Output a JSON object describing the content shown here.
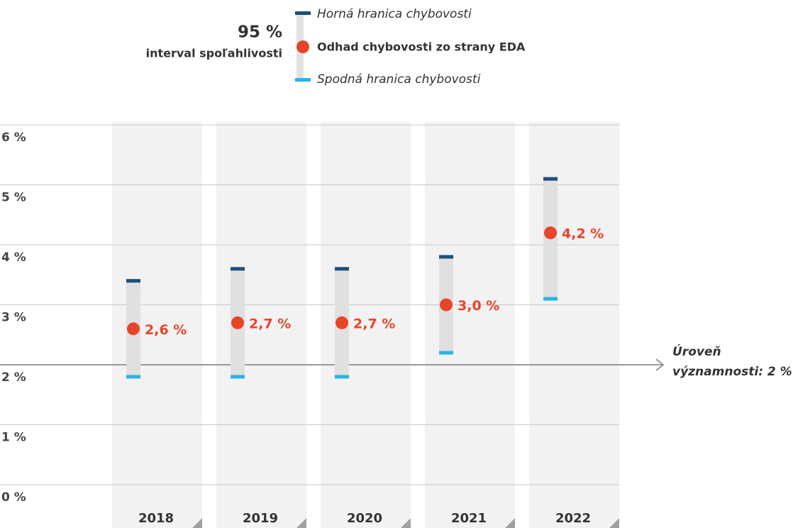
{
  "chart_data": {
    "type": "errorbar",
    "legend_title": [
      "95 %",
      "interval spoľahlivosti"
    ],
    "categories": [
      "2018",
      "2019",
      "2020",
      "2021",
      "2022"
    ],
    "series": [
      {
        "name": "Horná hranica chybovosti",
        "color": "#1d4f7c",
        "values": [
          3.4,
          3.6,
          3.6,
          3.8,
          5.1
        ]
      },
      {
        "name": "Odhad chybovosti zo strany EDA",
        "color": "#e8442a",
        "values": [
          2.6,
          2.7,
          2.7,
          3.0,
          4.2
        ],
        "value_labels": [
          "2,6 %",
          "2,7 %",
          "2,7 %",
          "3,0 %",
          "4,2 %"
        ]
      },
      {
        "name": "Spodná hranica chybovosti",
        "color": "#29b4e6",
        "values": [
          1.8,
          1.8,
          1.8,
          2.2,
          3.1
        ]
      }
    ],
    "ylim": [
      0,
      6
    ],
    "yticks": [
      {
        "value": 0,
        "label": "0 %"
      },
      {
        "value": 1,
        "label": "1 %"
      },
      {
        "value": 2,
        "label": "2 %"
      },
      {
        "value": 3,
        "label": "3 %"
      },
      {
        "value": 4,
        "label": "4 %"
      },
      {
        "value": 5,
        "label": "5 %"
      },
      {
        "value": 6,
        "label": "6 %"
      }
    ],
    "grid": true,
    "threshold": {
      "value": 2,
      "label": [
        "Úroveň",
        "významnosti: 2 %"
      ]
    }
  }
}
